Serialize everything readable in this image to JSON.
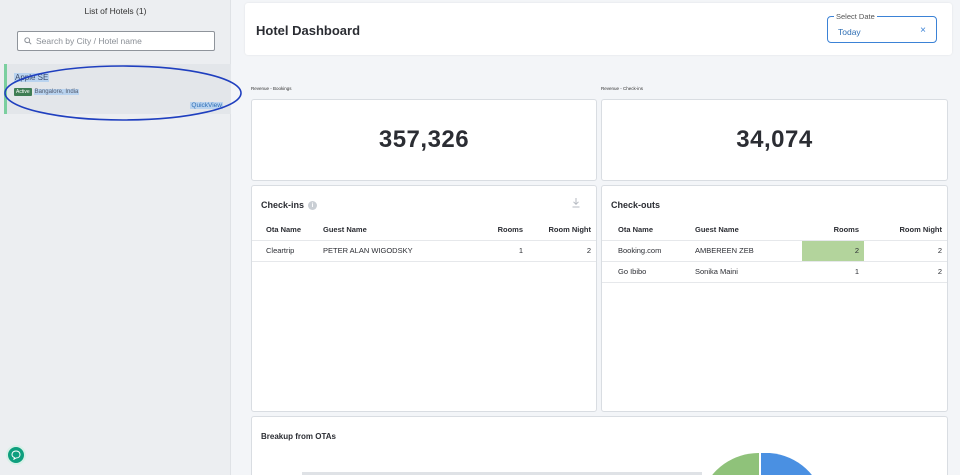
{
  "sidebar": {
    "title": "List of Hotels (1)",
    "search_placeholder": "Search by City / Hotel name",
    "hotels": [
      {
        "name": "Apple SE",
        "status": "Active",
        "location": "Bangalore, India",
        "link": "QuickView"
      }
    ]
  },
  "header": {
    "title": "Hotel Dashboard",
    "date_label": "Select Date",
    "date_value": "Today",
    "clear_symbol": "×"
  },
  "metrics": [
    {
      "label": "Revenue - Bookings",
      "value": "357,326"
    },
    {
      "label": "Revenue - Check-ins",
      "value": "34,074"
    }
  ],
  "checkins": {
    "title": "Check-ins",
    "columns": [
      "Ota Name",
      "Guest Name",
      "Rooms",
      "Room Night"
    ],
    "rows": [
      {
        "ota": "Cleartrip",
        "guest": "PETER ALAN WIGODSKY",
        "rooms": "1",
        "nights": "2"
      }
    ]
  },
  "checkouts": {
    "title": "Check-outs",
    "columns": [
      "Ota Name",
      "Guest Name",
      "Rooms",
      "Room Night"
    ],
    "rows": [
      {
        "ota": "Booking.com",
        "guest": "AMBEREEN ZEB",
        "rooms": "2",
        "nights": "2"
      },
      {
        "ota": "Go Ibibo",
        "guest": "Sonika Maini",
        "rooms": "1",
        "nights": "2"
      }
    ]
  },
  "breakup": {
    "title": "Breakup from OTAs"
  },
  "colors": {
    "accent": "#3b82d6",
    "active_badge": "#3f7d54",
    "highlight": "#b3d49c",
    "pie_green": "#8fc27a",
    "pie_blue": "#4a90e2",
    "annotation": "#1f3fbf"
  }
}
